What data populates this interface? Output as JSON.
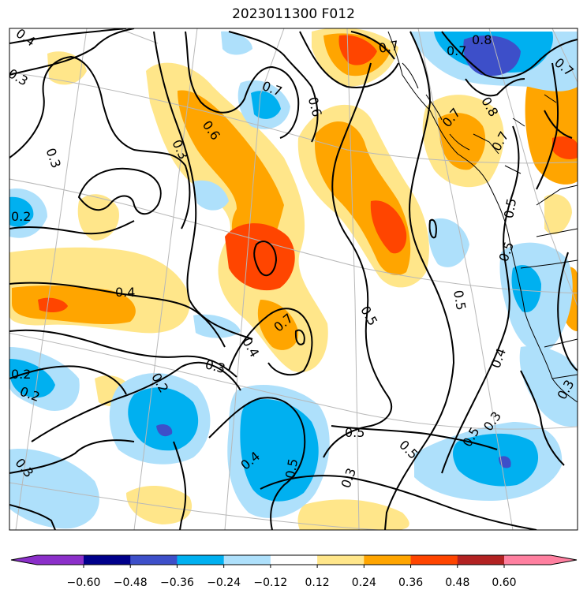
{
  "title": "2023011300 F012",
  "colors": {
    "neg_060": "#8b2fc9",
    "neg_048": "#00008b",
    "neg_036": "#3d4fc9",
    "neg_024": "#00b0f0",
    "neg_012": "#aee0fb",
    "neutral": "#ffffff",
    "pos_012": "#ffe68a",
    "pos_024": "#ffa500",
    "pos_036": "#ff4500",
    "pos_048": "#b22222",
    "pos_060": "#ff80a0"
  },
  "colorbar": {
    "ticks": [
      "−0.60",
      "−0.48",
      "−0.36",
      "−0.24",
      "−0.12",
      "0.12",
      "0.24",
      "0.36",
      "0.48",
      "0.60"
    ]
  },
  "contour_labels": [
    "0.4",
    "0.3",
    "0.7",
    "0.6",
    "0.3",
    "0.3",
    "0.7",
    "0.8",
    "0.7",
    "0.7",
    "0.8",
    "0.7",
    "0.7",
    "0.2",
    "0.6",
    "0.5",
    "0.4",
    "0.5",
    "0.5",
    "0.5",
    "0.7",
    "0.3",
    "0.4",
    "0.2",
    "0.2",
    "0.4",
    "0.5",
    "0.5",
    "0.5",
    "0.4",
    "0.3",
    "0.3",
    "0.2",
    "0.3",
    "0.3",
    "0.5"
  ]
}
